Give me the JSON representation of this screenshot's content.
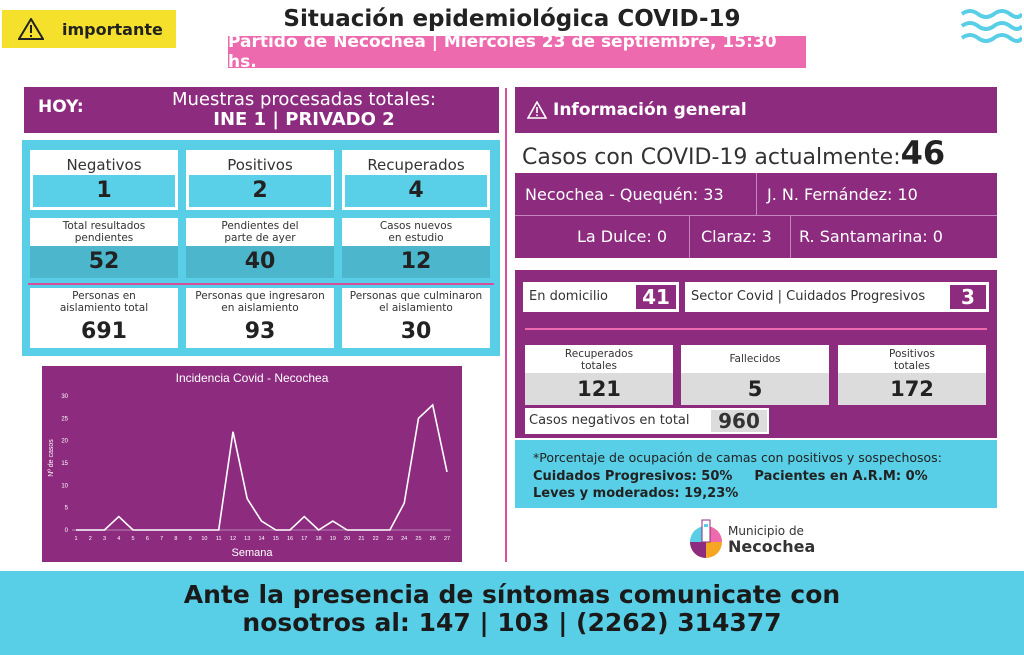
{
  "header": {
    "badge_label": "importante",
    "title": "Situación epidemiológica COVID-19",
    "subtitle": "Partido de Necochea | Miércoles 23 de septiembre, 15:30 hs."
  },
  "hoy": {
    "label": "HOY:",
    "line1": "Muestras procesadas totales:",
    "line2": "INE 1 | PRIVADO 2"
  },
  "left_cards": [
    {
      "label": "Negativos",
      "value": "1"
    },
    {
      "label": "Positivos",
      "value": "2"
    },
    {
      "label": "Recuperados",
      "value": "4"
    },
    {
      "label": "Total resultados pendientes",
      "value": "52"
    },
    {
      "label": "Pendientes del parte de ayer",
      "value": "40"
    },
    {
      "label": "Casos nuevos en estudio",
      "value": "12"
    },
    {
      "label": "Personas en aislamiento total",
      "value": "691"
    },
    {
      "label": "Personas que ingresaron en aislamiento",
      "value": "93"
    },
    {
      "label": "Personas que culminaron el aislamiento",
      "value": "30"
    }
  ],
  "chart_data": {
    "type": "line",
    "title": "Incidencia Covid - Necochea",
    "xlabel": "Semana",
    "ylabel": "Nº de casos",
    "x": [
      1,
      2,
      3,
      4,
      5,
      6,
      7,
      8,
      9,
      10,
      11,
      12,
      13,
      14,
      15,
      16,
      17,
      18,
      19,
      20,
      21,
      22,
      23,
      24,
      25,
      26,
      27
    ],
    "values": [
      0,
      0,
      0,
      3,
      0,
      0,
      0,
      0,
      0,
      0,
      0,
      22,
      7,
      2,
      0,
      0,
      3,
      0,
      2,
      0,
      0,
      0,
      0,
      6,
      25,
      28,
      13
    ],
    "ylim": [
      0,
      30
    ],
    "yticks": [
      0,
      5,
      10,
      15,
      20,
      25,
      30
    ],
    "grid": false
  },
  "info": {
    "header": "Información general",
    "casos_label": "Casos con COVID-19 actualmente:",
    "casos_value": "46",
    "locations": [
      "Necochea - Quequén: 33",
      "J. N. Fernández: 10",
      "La Dulce: 0",
      "Claraz: 3",
      "R. Santamarina: 0"
    ]
  },
  "status": {
    "domicilio_label": "En domicilio",
    "domicilio_value": "41",
    "sector_label": "Sector Covid | Cuidados Progresivos",
    "sector_value": "3",
    "totals": [
      {
        "label": "Recuperados totales",
        "value": "121"
      },
      {
        "label": "Fallecidos",
        "value": "5"
      },
      {
        "label": "Positivos totales",
        "value": "172"
      }
    ],
    "negativos_label": "Casos negativos en total",
    "negativos_value": "960"
  },
  "beds": {
    "note": "*Porcentaje de ocupación de camas con positivos y sospechosos:",
    "cp": "Cuidados Progresivos: 50%",
    "arm": "Pacientes en A.R.M: 0%",
    "leves": "Leves y moderados: 19,23%"
  },
  "logo": {
    "line1": "Municipio de",
    "line2": "Necochea"
  },
  "footer": {
    "line1": "Ante la presencia de síntomas comunicate con",
    "line2": "nosotros al: 147 | 103 | (2262) 314377"
  },
  "colors": {
    "purple": "#8d2c7f",
    "cyan": "#58cfe6",
    "pink": "#ee6aae",
    "yellow": "#f5e12c"
  }
}
